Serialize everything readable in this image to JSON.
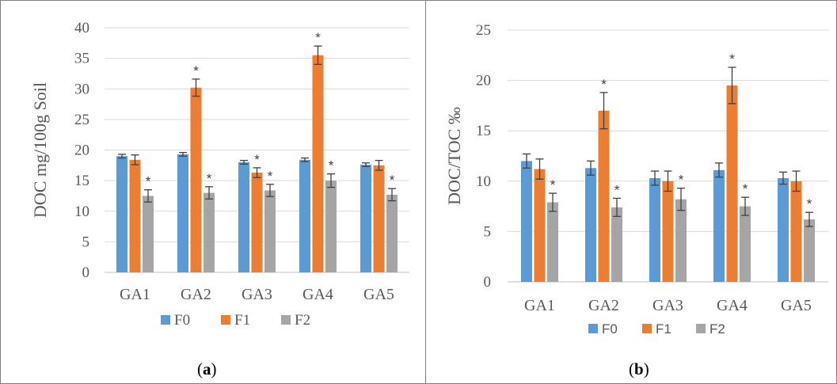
{
  "colors": {
    "F0": "#5b9bd5",
    "F1": "#ed7d31",
    "F2": "#a5a5a5",
    "grid": "#d9d9d9",
    "axis": "#bfbfbf",
    "error": "#404040"
  },
  "chart_data": [
    {
      "type": "bar",
      "panel": "a",
      "caption_open": "(",
      "caption_letter": "a",
      "caption_close": ")",
      "ylabel": "DOC mg/100g Soil",
      "xlabel": "",
      "ylim": [
        0,
        40
      ],
      "yticks": [
        0,
        5,
        10,
        15,
        20,
        25,
        30,
        35,
        40
      ],
      "grid": true,
      "legend_position": "bottom",
      "categories": [
        "GA1",
        "GA2",
        "GA3",
        "GA4",
        "GA5"
      ],
      "series": [
        {
          "name": "F0",
          "values": [
            19.0,
            19.3,
            18.0,
            18.4,
            17.6
          ],
          "errors": [
            0.3,
            0.3,
            0.3,
            0.3,
            0.3
          ],
          "significant": [
            false,
            false,
            false,
            false,
            false
          ]
        },
        {
          "name": "F1",
          "values": [
            18.4,
            30.2,
            16.3,
            35.5,
            17.5
          ],
          "errors": [
            0.8,
            1.4,
            0.8,
            1.5,
            0.8
          ],
          "significant": [
            false,
            true,
            true,
            true,
            false
          ]
        },
        {
          "name": "F2",
          "values": [
            12.5,
            13.0,
            13.4,
            15.0,
            12.7
          ],
          "errors": [
            1.0,
            1.0,
            1.0,
            1.1,
            1.0
          ],
          "significant": [
            true,
            true,
            true,
            true,
            true
          ]
        }
      ],
      "marker": "*"
    },
    {
      "type": "bar",
      "panel": "b",
      "caption_open": "(",
      "caption_letter": "b",
      "caption_close": ")",
      "ylabel": "DOC/TOC ‰",
      "xlabel": "",
      "ylim": [
        0,
        25
      ],
      "yticks": [
        0,
        5,
        10,
        15,
        20,
        25
      ],
      "grid": true,
      "legend_position": "bottom",
      "categories": [
        "GA1",
        "GA2",
        "GA3",
        "GA4",
        "GA5"
      ],
      "series": [
        {
          "name": "F0",
          "values": [
            12.0,
            11.3,
            10.3,
            11.1,
            10.3
          ],
          "errors": [
            0.7,
            0.7,
            0.7,
            0.7,
            0.6
          ],
          "significant": [
            false,
            false,
            false,
            false,
            false
          ]
        },
        {
          "name": "F1",
          "values": [
            11.2,
            17.0,
            10.0,
            19.5,
            10.0
          ],
          "errors": [
            1.0,
            1.8,
            1.0,
            1.8,
            1.0
          ],
          "significant": [
            false,
            true,
            false,
            true,
            false
          ]
        },
        {
          "name": "F2",
          "values": [
            7.9,
            7.4,
            8.2,
            7.5,
            6.2
          ],
          "errors": [
            0.9,
            0.9,
            1.1,
            0.9,
            0.7
          ],
          "significant": [
            true,
            true,
            true,
            true,
            true
          ]
        }
      ],
      "marker": "*"
    }
  ]
}
